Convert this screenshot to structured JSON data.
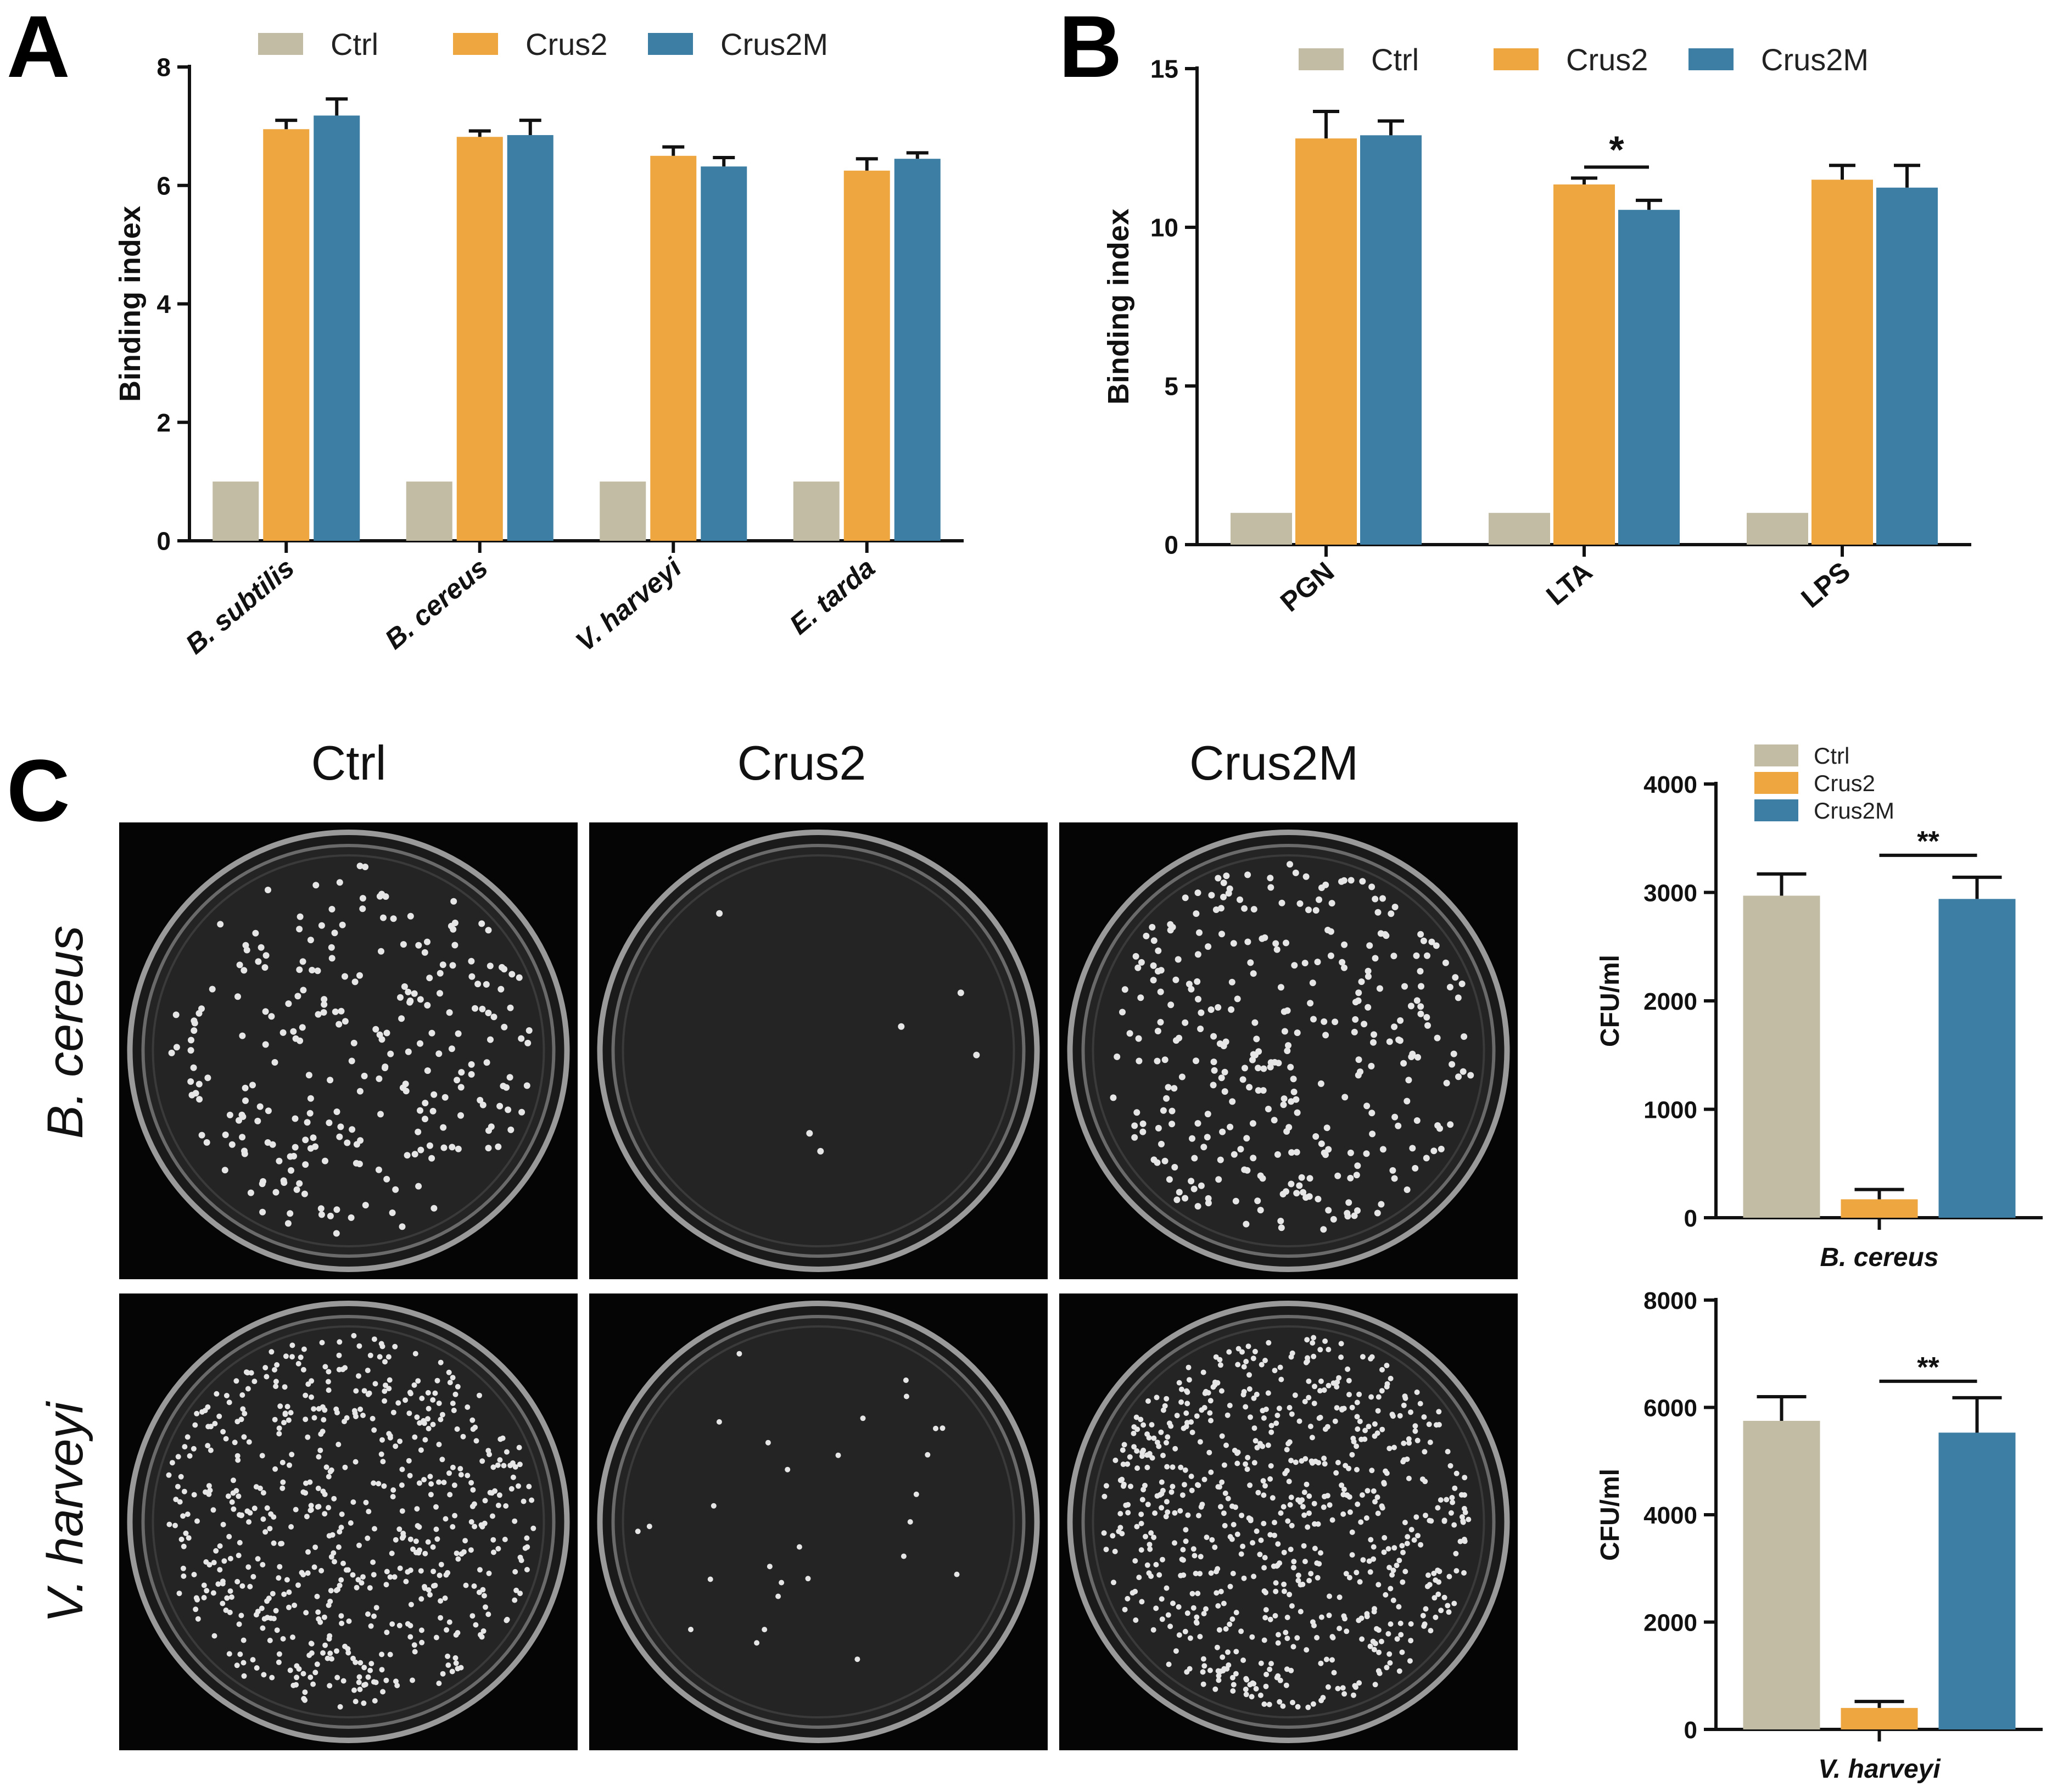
{
  "colors": {
    "Ctrl": "#c2bca4",
    "Crus2": "#eea640",
    "Crus2M": "#3c7ea4"
  },
  "chart_data": [
    {
      "panel": "A",
      "type": "bar",
      "ylabel": "Binding index",
      "ylim": [
        0,
        8
      ],
      "yticks": [
        "0",
        "2",
        "4",
        "6",
        "8"
      ],
      "categories": [
        "B. subtilis",
        "B. cereus",
        "V. harveyi",
        "E. tarda"
      ],
      "categories_italic": true,
      "legend": [
        "Ctrl",
        "Crus2",
        "Crus2M"
      ],
      "series": [
        {
          "name": "Ctrl",
          "values": [
            1.0,
            1.0,
            1.0,
            1.0
          ],
          "errors": [
            0,
            0,
            0,
            0
          ]
        },
        {
          "name": "Crus2",
          "values": [
            6.95,
            6.82,
            6.5,
            6.25
          ],
          "errors": [
            0.15,
            0.1,
            0.15,
            0.2
          ]
        },
        {
          "name": "Crus2M",
          "values": [
            7.18,
            6.85,
            6.32,
            6.45
          ],
          "errors": [
            0.28,
            0.25,
            0.15,
            0.1
          ]
        }
      ],
      "significance": []
    },
    {
      "panel": "B",
      "type": "bar",
      "ylabel": "Binding index",
      "ylim": [
        0,
        15
      ],
      "yticks": [
        "0",
        "5",
        "10",
        "15"
      ],
      "categories": [
        "PGN",
        "LTA",
        "LPS"
      ],
      "categories_italic": false,
      "legend": [
        "Ctrl",
        "Crus2",
        "Crus2M"
      ],
      "series": [
        {
          "name": "Ctrl",
          "values": [
            1.0,
            1.0,
            1.0
          ],
          "errors": [
            0,
            0,
            0
          ]
        },
        {
          "name": "Crus2",
          "values": [
            12.8,
            11.35,
            11.5
          ],
          "errors": [
            0.85,
            0.2,
            0.45
          ]
        },
        {
          "name": "Crus2M",
          "values": [
            12.9,
            10.55,
            11.25
          ],
          "errors": [
            0.45,
            0.3,
            0.7
          ]
        }
      ],
      "significance": [
        {
          "category": 1,
          "from": 1,
          "to": 2,
          "label": "*"
        }
      ]
    },
    {
      "panel": "C-B.cereus",
      "type": "bar",
      "ylabel": "CFU/ml",
      "ylim": [
        0,
        4000
      ],
      "yticks": [
        "0",
        "1000",
        "2000",
        "3000",
        "4000"
      ],
      "xlabel": "B. cereus",
      "legend": [
        "Ctrl",
        "Crus2",
        "Crus2M"
      ],
      "series": [
        {
          "name": "Ctrl",
          "values": [
            2970
          ],
          "errors": [
            200
          ]
        },
        {
          "name": "Crus2",
          "values": [
            170
          ],
          "errors": [
            90
          ]
        },
        {
          "name": "Crus2M",
          "values": [
            2940
          ],
          "errors": [
            200
          ]
        }
      ],
      "significance": [
        {
          "from": 1,
          "to": 2,
          "label": "**"
        }
      ]
    },
    {
      "panel": "C-V.harveyi",
      "type": "bar",
      "ylabel": "CFU/ml",
      "ylim": [
        0,
        8000
      ],
      "yticks": [
        "0",
        "2000",
        "4000",
        "6000",
        "8000"
      ],
      "xlabel": "V. harveyi",
      "legend": [],
      "series": [
        {
          "name": "Ctrl",
          "values": [
            5750
          ],
          "errors": [
            450
          ]
        },
        {
          "name": "Crus2",
          "values": [
            400
          ],
          "errors": [
            120
          ]
        },
        {
          "name": "Crus2M",
          "values": [
            5530
          ],
          "errors": [
            650
          ]
        }
      ],
      "significance": [
        {
          "from": 1,
          "to": 2,
          "label": "**"
        }
      ]
    }
  ],
  "panel_labels": {
    "a": "A",
    "b": "B",
    "c": "C"
  },
  "plates": {
    "columns": [
      "Ctrl",
      "Crus2",
      "Crus2M"
    ],
    "rows": [
      "B. cereus",
      "V. harveyi"
    ]
  }
}
